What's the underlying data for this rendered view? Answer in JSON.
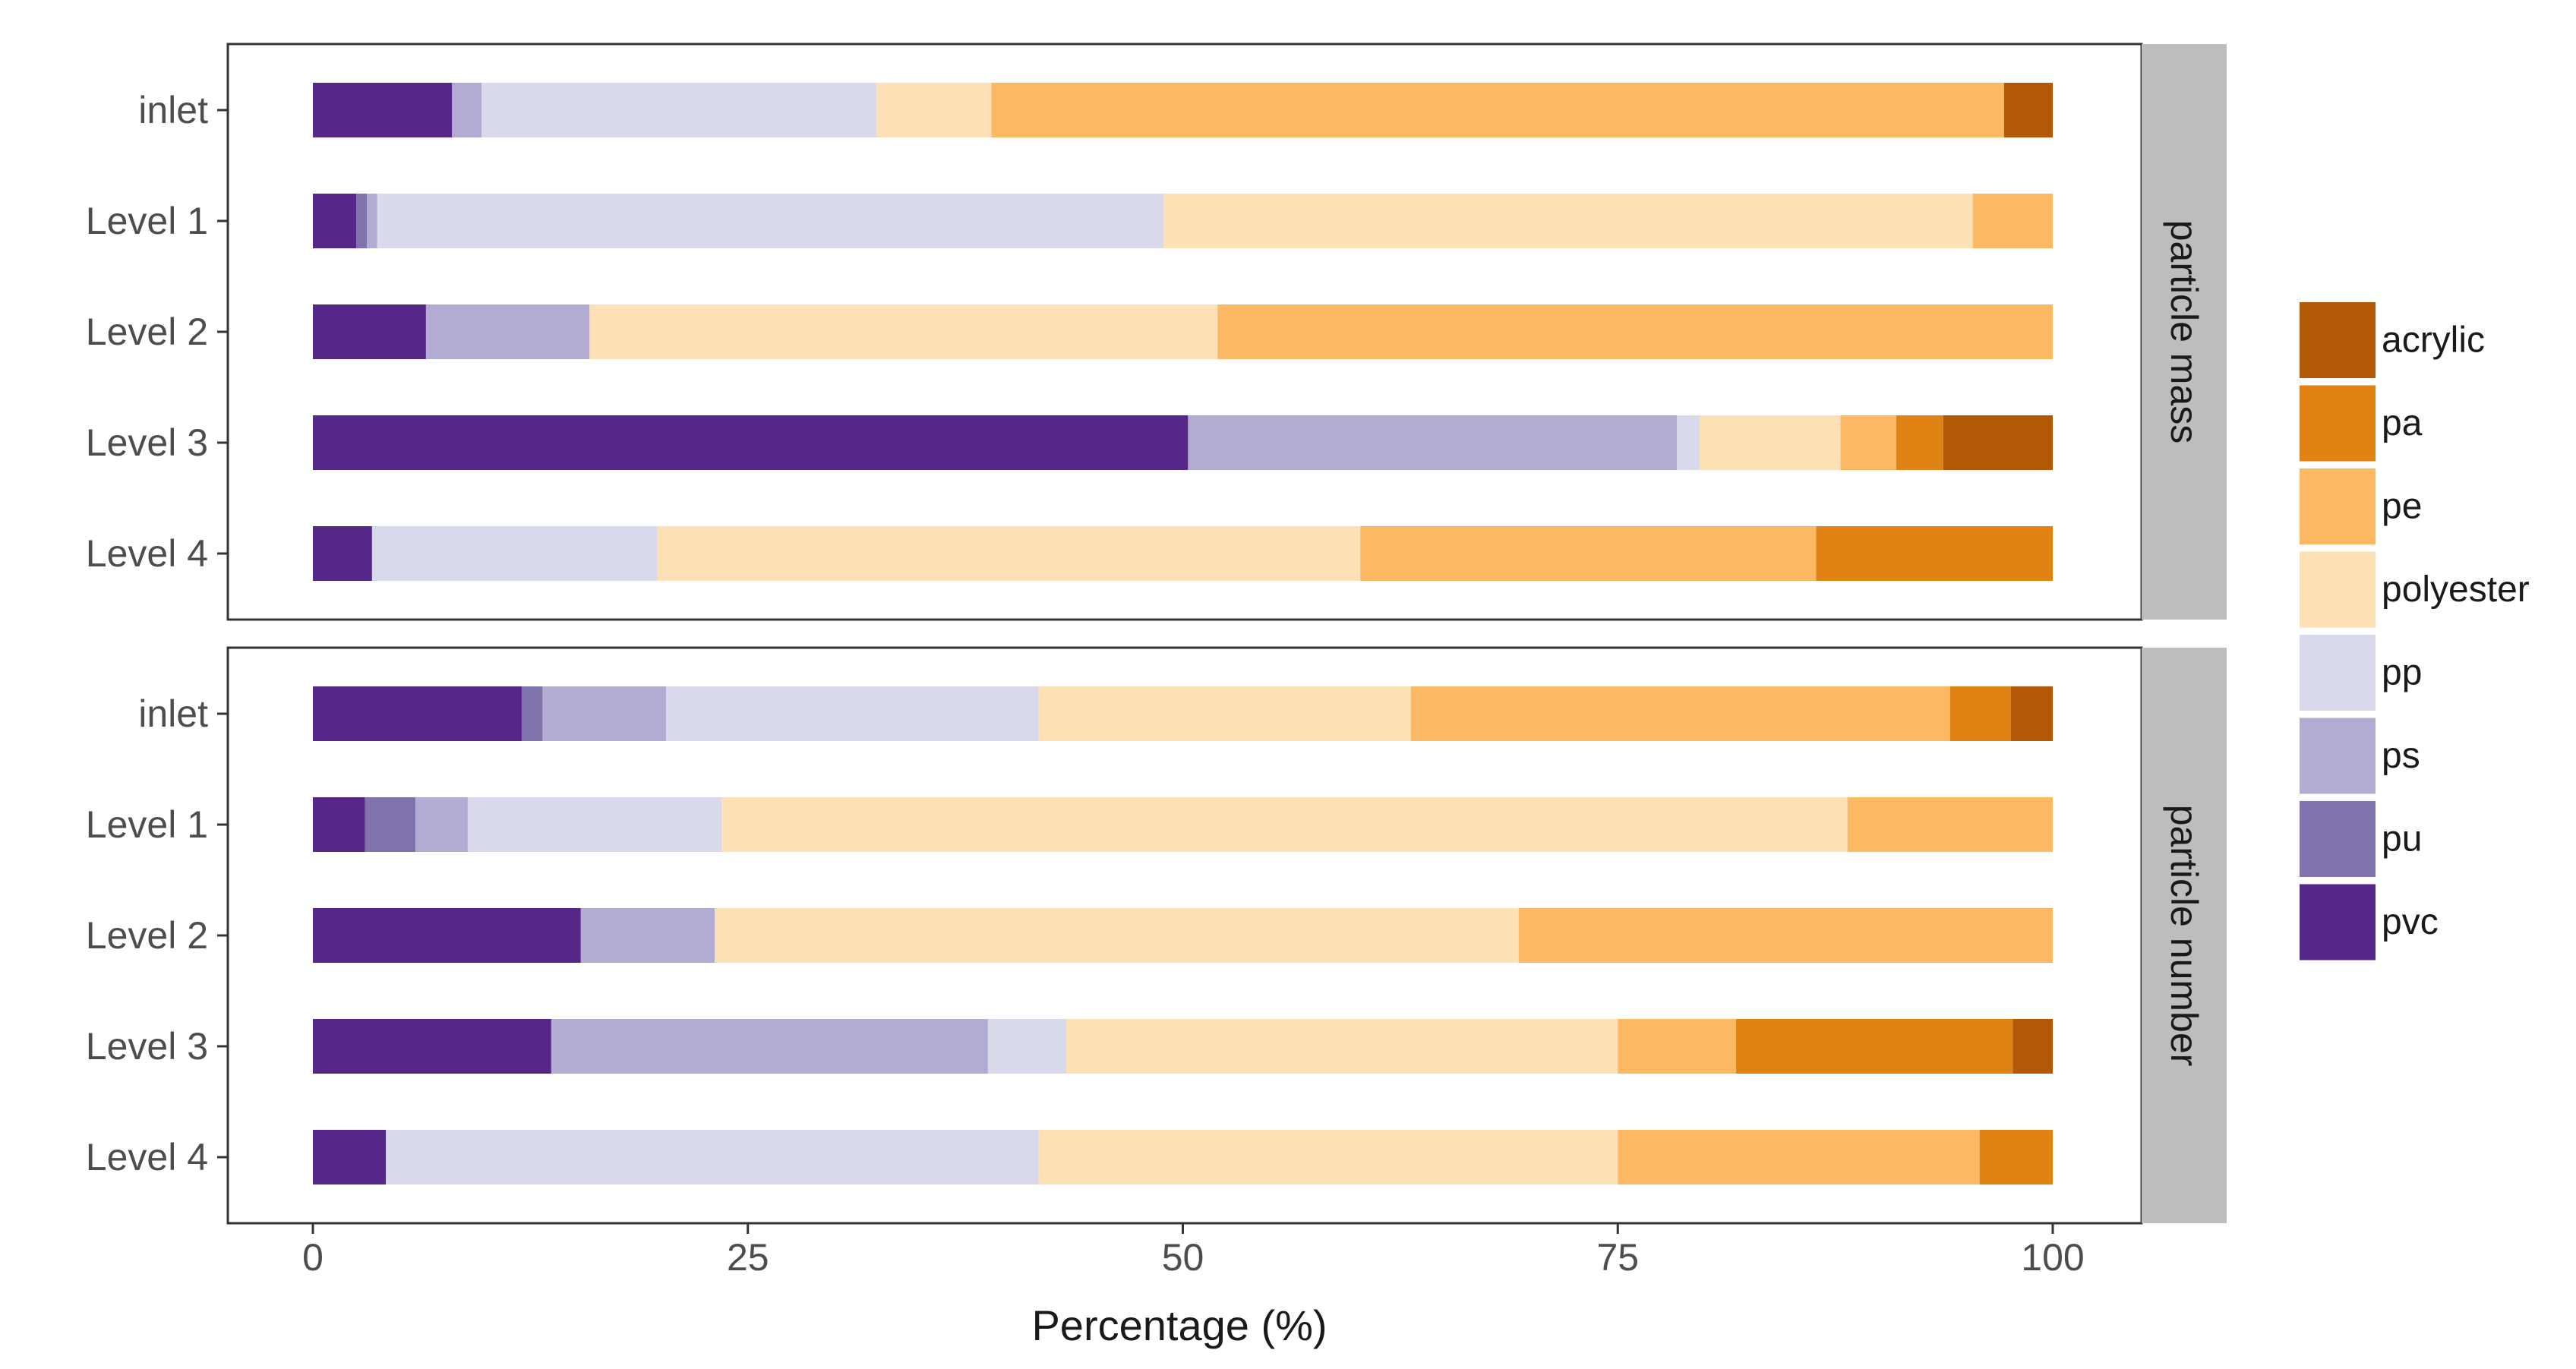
{
  "chart_data": {
    "type": "bar",
    "orientation": "horizontal",
    "stacked": true,
    "xlabel": "Percentage (%)",
    "xlim": [
      0,
      100
    ],
    "xticks": [
      0,
      25,
      50,
      75,
      100
    ],
    "grid": false,
    "legend_position": "right",
    "segments": [
      "pvc",
      "pu",
      "ps",
      "pp",
      "polyester",
      "pe",
      "pa",
      "acrylic"
    ],
    "legend_order": [
      "acrylic",
      "pa",
      "pe",
      "polyester",
      "pp",
      "ps",
      "pu",
      "pvc"
    ],
    "colors": {
      "acrylic": "#b35806",
      "pa": "#e08214",
      "pe": "#fdb863",
      "polyester": "#fee0b6",
      "pp": "#d8daeb",
      "ps": "#b2abd2",
      "pu": "#8073ac",
      "pvc": "#542788"
    },
    "panels": [
      {
        "strip": "particle mass",
        "categories": [
          "inlet",
          "Level 1",
          "Level 2",
          "Level 3",
          "Level 4"
        ],
        "series": [
          {
            "name": "pvc",
            "values": [
              8,
              2.5,
              6.5,
              50.3,
              3.4
            ]
          },
          {
            "name": "pu",
            "values": [
              0,
              0.6,
              0,
              0,
              0
            ]
          },
          {
            "name": "ps",
            "values": [
              1.7,
              0.6,
              9.4,
              28.1,
              0
            ]
          },
          {
            "name": "pp",
            "values": [
              22.7,
              45.2,
              0,
              1.3,
              16.4
            ]
          },
          {
            "name": "polyester",
            "values": [
              6.6,
              46.5,
              36.1,
              8.1,
              40.4
            ]
          },
          {
            "name": "pe",
            "values": [
              58.2,
              4.6,
              48,
              3.2,
              26.2
            ]
          },
          {
            "name": "pa",
            "values": [
              0,
              0,
              0,
              2.7,
              13.6
            ]
          },
          {
            "name": "acrylic",
            "values": [
              2.8,
              0,
              0,
              6.3,
              0
            ]
          }
        ]
      },
      {
        "strip": "particle number",
        "categories": [
          "inlet",
          "Level 1",
          "Level 2",
          "Level 3",
          "Level 4"
        ],
        "series": [
          {
            "name": "pvc",
            "values": [
              12,
              3,
              15.4,
              13.7,
              4.2
            ]
          },
          {
            "name": "pu",
            "values": [
              1.2,
              2.9,
              0,
              0,
              0
            ]
          },
          {
            "name": "ps",
            "values": [
              7.1,
              3,
              7.7,
              25.1,
              0
            ]
          },
          {
            "name": "pp",
            "values": [
              21.4,
              14.6,
              0,
              4.5,
              37.5
            ]
          },
          {
            "name": "polyester",
            "values": [
              21.4,
              64.7,
              46.2,
              31.7,
              33.3
            ]
          },
          {
            "name": "pe",
            "values": [
              31,
              11.8,
              30.7,
              6.8,
              20.8
            ]
          },
          {
            "name": "pa",
            "values": [
              3.5,
              0,
              0,
              15.9,
              4.2
            ]
          },
          {
            "name": "acrylic",
            "values": [
              2.4,
              0,
              0,
              2.3,
              0
            ]
          }
        ]
      }
    ]
  }
}
